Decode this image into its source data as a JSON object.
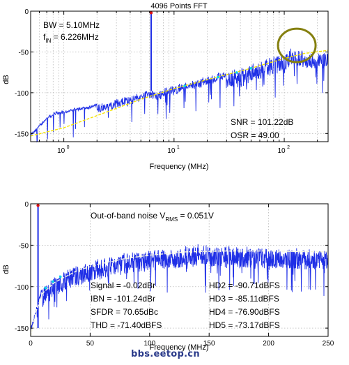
{
  "watermark": "bbs.eetop.cn",
  "colors": {
    "spectrum": "#1f2fe6",
    "trend": "#f5e400",
    "fundamental_marker": "#e01010",
    "harmonic_marker": "#00d8e8",
    "highlight_circle": "#858010",
    "grid": "#b8b8b8"
  },
  "chart_data": [
    {
      "type": "line",
      "title": "4096 Points FFT",
      "xlabel": "Frequency (MHz)",
      "ylabel": "dB",
      "x_scale": "log",
      "xlim": [
        0.5,
        250
      ],
      "ylim": [
        -160,
        0
      ],
      "xticks": [
        1,
        10,
        100
      ],
      "xtick_labels": [
        "10^0",
        "10^1",
        "10^2"
      ],
      "yticks": [
        0,
        -50,
        -100,
        -150
      ],
      "ytick_labels": [
        "0",
        "-50",
        "-100",
        "-150"
      ],
      "grid": true,
      "annotations": {
        "bw": "BW = 5.10MHz",
        "fin": "f",
        "fin_sub": "IN",
        "fin_value": " = 6.226MHz",
        "snr": "SNR = 101.22dB",
        "osr": "OSR = 49.00"
      },
      "fundamental": {
        "x": 6.2,
        "y": -2
      },
      "highlight": {
        "x": 130,
        "y": -42
      },
      "series": [
        {
          "style": "spectrum-envelope",
          "points": [
            [
              0.5,
              -150
            ],
            [
              0.6,
              -140
            ],
            [
              0.7,
              -130
            ],
            [
              0.85,
              -124
            ],
            [
              1,
              -123
            ],
            [
              1.3,
              -119
            ],
            [
              1.6,
              -118
            ],
            [
              2,
              -114
            ],
            [
              2.5,
              -112
            ],
            [
              3,
              -108
            ],
            [
              3.5,
              -105
            ],
            [
              4,
              -104
            ],
            [
              5,
              -100
            ],
            [
              6,
              -96
            ],
            [
              7,
              -100
            ],
            [
              8,
              -95
            ],
            [
              10,
              -92
            ],
            [
              12,
              -88
            ],
            [
              15,
              -86
            ],
            [
              20,
              -80
            ],
            [
              30,
              -74
            ],
            [
              40,
              -70
            ],
            [
              50,
              -66
            ],
            [
              60,
              -62
            ],
            [
              70,
              -58
            ],
            [
              80,
              -56
            ],
            [
              100,
              -53
            ],
            [
              120,
              -42
            ],
            [
              150,
              -48
            ],
            [
              200,
              -50
            ],
            [
              250,
              -52
            ]
          ]
        },
        {
          "style": "trend",
          "points": [
            [
              0.5,
              -153
            ],
            [
              1,
              -143
            ],
            [
              2,
              -128
            ],
            [
              5,
              -108
            ],
            [
              10,
              -95
            ],
            [
              20,
              -84
            ],
            [
              50,
              -70
            ],
            [
              100,
              -58
            ],
            [
              150,
              -52
            ],
            [
              250,
              -48
            ]
          ]
        }
      ]
    },
    {
      "type": "line",
      "title": "",
      "xlabel": "Frequency (MHz)",
      "ylabel": "dB",
      "xlim": [
        0,
        250
      ],
      "ylim": [
        -160,
        0
      ],
      "xticks": [
        0,
        50,
        100,
        150,
        200,
        250
      ],
      "xtick_labels": [
        "0",
        "50",
        "100",
        "150",
        "200",
        "250"
      ],
      "yticks": [
        0,
        -50,
        -100,
        -150
      ],
      "ytick_labels": [
        "0",
        "-50",
        "-100",
        "-150"
      ],
      "grid": true,
      "annotations": {
        "oob_prefix": "Out-of-band noise V",
        "oob_sub": "RMS",
        "oob_value": " = 0.051V",
        "signal": "Signal = -0.02dBr",
        "ibn": "IBN = -101.24dBr",
        "sfdr": "SFDR = 70.65dBc",
        "thd": "THD = -71.40dBFS",
        "hd2": "HD2 = -90.71dBFS",
        "hd3": "HD3 = -85.11dBFS",
        "hd4": "HD4 = -76.90dBFS",
        "hd5": "HD5 = -73.17dBFS"
      },
      "fundamental": {
        "x": 6.2,
        "y": -2
      },
      "series": [
        {
          "style": "spectrum-envelope",
          "points": [
            [
              0,
              -150
            ],
            [
              3,
              -135
            ],
            [
              6,
              -118
            ],
            [
              10,
              -100
            ],
            [
              15,
              -95
            ],
            [
              20,
              -88
            ],
            [
              30,
              -80
            ],
            [
              40,
              -75
            ],
            [
              50,
              -70
            ],
            [
              60,
              -66
            ],
            [
              70,
              -63
            ],
            [
              80,
              -60
            ],
            [
              100,
              -57
            ],
            [
              120,
              -54
            ],
            [
              140,
              -50
            ],
            [
              160,
              -52
            ],
            [
              180,
              -53
            ],
            [
              200,
              -54
            ],
            [
              230,
              -55
            ],
            [
              250,
              -56
            ]
          ]
        },
        {
          "style": "trend",
          "points": [
            [
              0,
              -160
            ],
            [
              5,
              -128
            ],
            [
              10,
              -108
            ],
            [
              20,
              -95
            ],
            [
              40,
              -80
            ],
            [
              60,
              -72
            ],
            [
              80,
              -66
            ],
            [
              100,
              -62
            ],
            [
              130,
              -58
            ],
            [
              160,
              -57
            ],
            [
              200,
              -57
            ],
            [
              250,
              -58
            ]
          ]
        }
      ]
    }
  ]
}
